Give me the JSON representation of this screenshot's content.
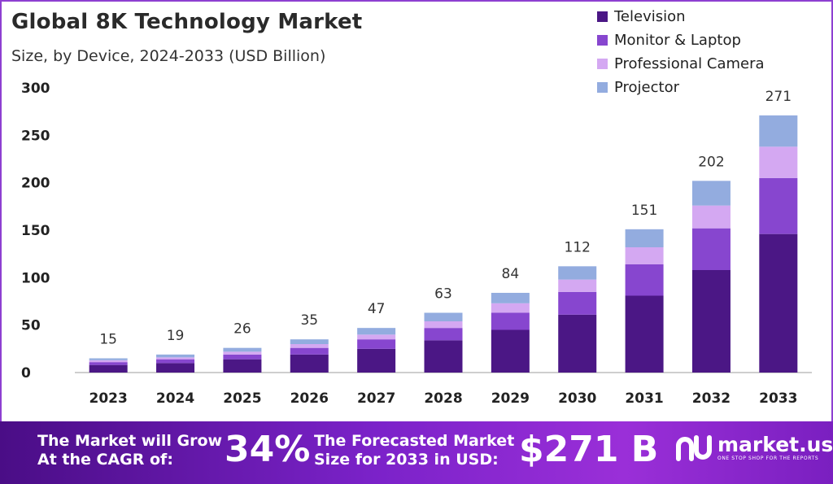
{
  "header": {
    "title": "Global 8K Technology Market",
    "subtitle": "Size, by Device, 2024-2033 (USD Billion)"
  },
  "chart_data": {
    "type": "bar",
    "stacked": true,
    "categories": [
      "2023",
      "2024",
      "2025",
      "2026",
      "2027",
      "2028",
      "2029",
      "2030",
      "2031",
      "2032",
      "2033"
    ],
    "totals": [
      15,
      19,
      26,
      35,
      47,
      63,
      84,
      112,
      151,
      202,
      271
    ],
    "series": [
      {
        "name": "Television",
        "color": "#4b1785",
        "values": [
          8,
          10,
          14,
          19,
          25,
          34,
          45,
          61,
          81,
          108,
          146
        ]
      },
      {
        "name": "Monitor & Laptop",
        "color": "#8746cf",
        "values": [
          3,
          4,
          5,
          7,
          10,
          13,
          18,
          24,
          33,
          44,
          59
        ]
      },
      {
        "name": "Professional Camera",
        "color": "#d4a8f2",
        "values": [
          2,
          2,
          3,
          4,
          5,
          7,
          10,
          13,
          18,
          24,
          33
        ]
      },
      {
        "name": "Projector",
        "color": "#93acdf",
        "values": [
          2,
          3,
          4,
          5,
          7,
          9,
          11,
          14,
          19,
          26,
          33
        ]
      }
    ],
    "yticks": [
      0,
      50,
      100,
      150,
      200,
      250,
      300
    ],
    "ylim": [
      0,
      300
    ],
    "grid": false,
    "legend_position": "top-right"
  },
  "banner": {
    "cagr_line1": "The Market will Grow",
    "cagr_line2": "At the CAGR of:",
    "cagr_value": "34%",
    "forecast_line1": "The Forecasted Market",
    "forecast_line2": "Size for 2033 in USD:",
    "forecast_value": "$271 B",
    "brand_name": "market.us",
    "brand_tagline": "ONE STOP SHOP FOR THE REPORTS"
  }
}
